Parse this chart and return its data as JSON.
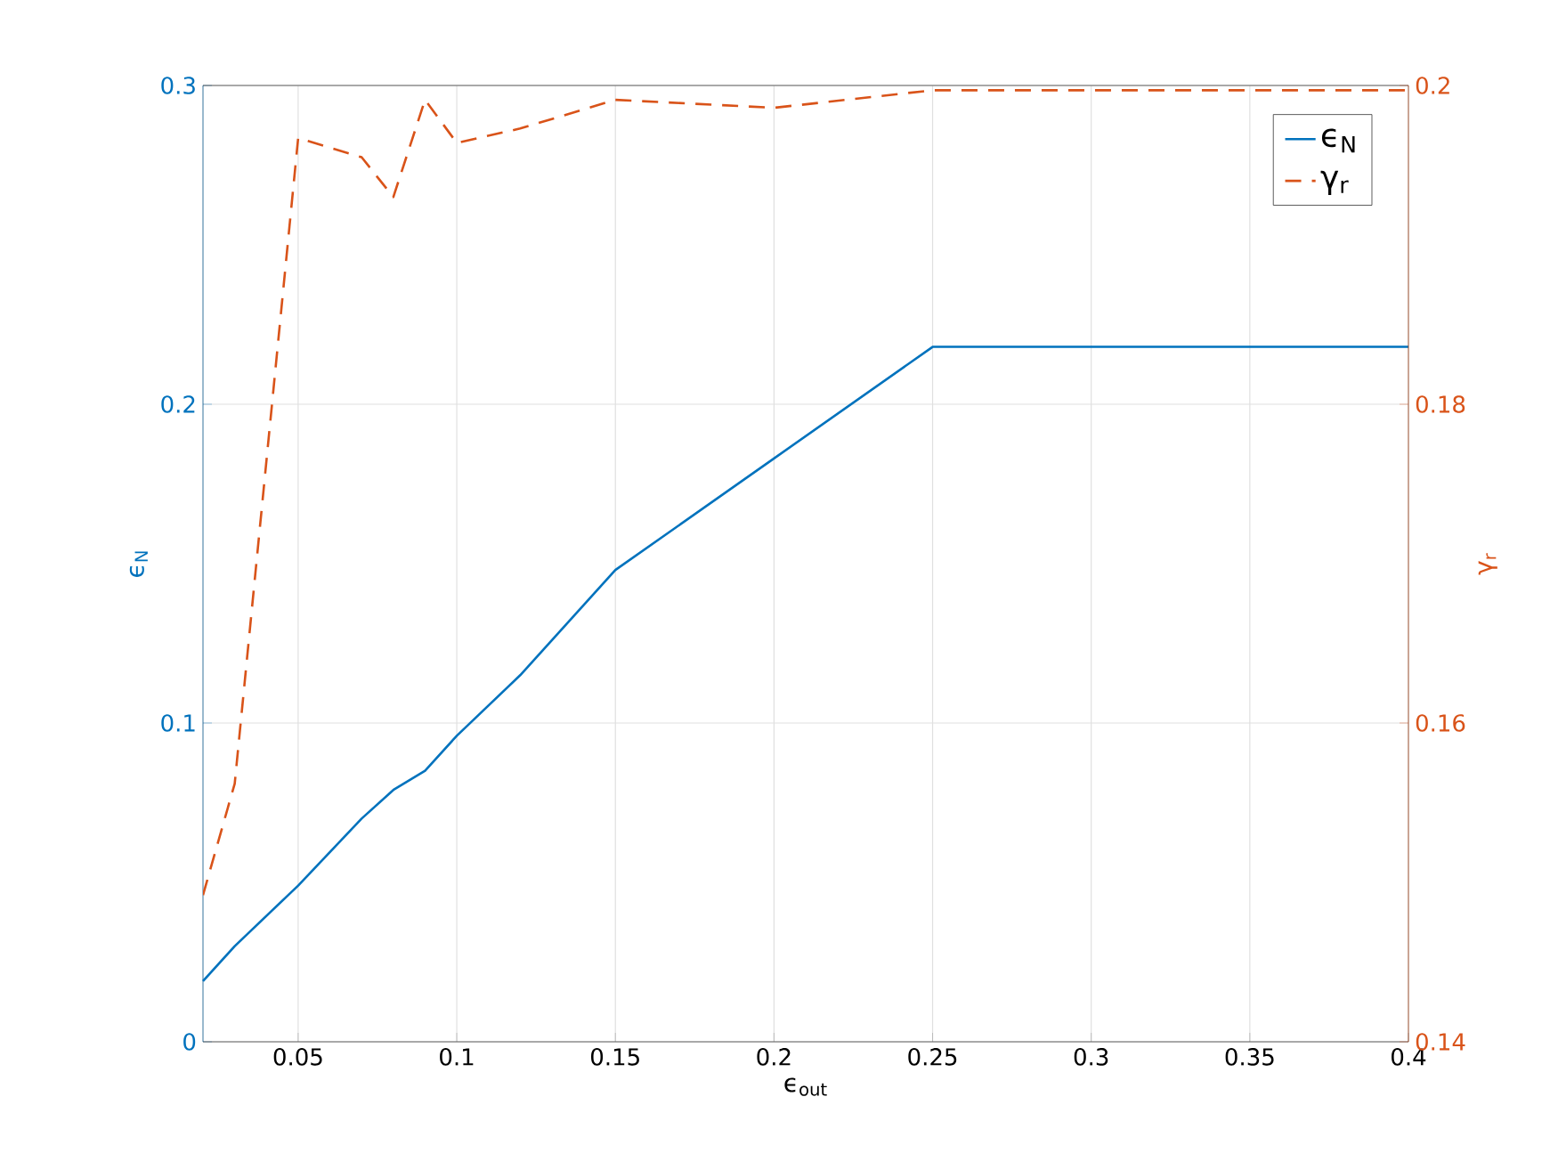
{
  "chart_data": {
    "type": "line",
    "xlabel": "ϵ$_{out}$",
    "ylabel": "ϵ$_{N}$",
    "y2label": "γ$_{r}$",
    "x": [
      0.02,
      0.03,
      0.05,
      0.07,
      0.08,
      0.09,
      0.1,
      0.12,
      0.15,
      0.2,
      0.25,
      0.3,
      0.35,
      0.4
    ],
    "series": [
      {
        "name": "ϵ$_{N}$",
        "color": "#0072bd",
        "line_style": "solid",
        "values": [
          0.019,
          0.03,
          0.049,
          0.07,
          0.079,
          0.085,
          0.096,
          0.115,
          0.148,
          0.183,
          0.218,
          0.218,
          0.218,
          0.218
        ]
      },
      {
        "name": "γ$_{r}$",
        "color": "#d95319",
        "line_style": "dashed",
        "axis": "y2",
        "values": [
          0.1492,
          0.1562,
          0.1967,
          0.1955,
          0.193,
          0.1991,
          0.1964,
          0.1973,
          0.1991,
          0.1986,
          0.1997,
          0.1997,
          0.1997,
          0.1997
        ]
      }
    ],
    "xlim": [
      0.02,
      0.4
    ],
    "xticks": [
      0.05,
      0.1,
      0.15,
      0.2,
      0.25,
      0.3,
      0.35,
      0.4
    ],
    "ylim": [
      0,
      0.3
    ],
    "yticks": [
      0,
      0.1,
      0.2,
      0.3
    ],
    "y2lim": [
      0.14,
      0.2
    ],
    "y2ticks": [
      0.14,
      0.16,
      0.18,
      0.2
    ],
    "grid": true,
    "legend": "top right"
  }
}
